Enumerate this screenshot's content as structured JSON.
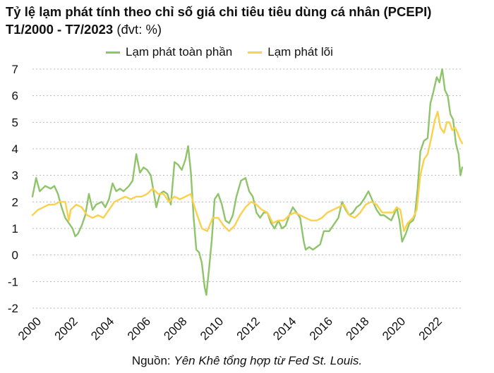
{
  "title_line1": "Tỷ lệ lạm phát tính theo chỉ số giá chi tiêu tiêu dùng cá nhân (PCEPI)",
  "title_line2": "T1/2000 - T7/2023",
  "title_unit": " (đvt: %)",
  "source_prefix": "Nguồn: ",
  "source_text": "Yên Khê tổng hợp từ Fed St. Louis.",
  "chart_data": {
    "type": "line",
    "title": "Tỷ lệ lạm phát tính theo chỉ số giá chi tiêu tiêu dùng cá nhân (PCEPI) T1/2000 - T7/2023 (đvt: %)",
    "xlabel": "",
    "ylabel": "",
    "xlim": [
      2000,
      2023.6
    ],
    "ylim": [
      -2,
      7
    ],
    "yticks": [
      -2,
      -1,
      0,
      1,
      2,
      3,
      4,
      5,
      6,
      7
    ],
    "xticks": [
      2000,
      2002,
      2004,
      2006,
      2008,
      2010,
      2012,
      2014,
      2016,
      2018,
      2020,
      2022
    ],
    "x_tick_labels": [
      "2000",
      "2002",
      "2004",
      "2006",
      "2008",
      "2010",
      "2012",
      "2014",
      "2016",
      "2018",
      "2020",
      "2022"
    ],
    "y_tick_labels": [
      "-2",
      "-1",
      "0",
      "1",
      "2",
      "3",
      "4",
      "5",
      "6",
      "7"
    ],
    "grid": "horizontal dotted",
    "legend_position": "top",
    "series": [
      {
        "name": "Lạm phát toàn phần",
        "color": "#8fc46a",
        "points": [
          [
            2000.0,
            2.2
          ],
          [
            2000.2,
            2.9
          ],
          [
            2000.4,
            2.4
          ],
          [
            2000.7,
            2.6
          ],
          [
            2001.0,
            2.5
          ],
          [
            2001.2,
            2.6
          ],
          [
            2001.4,
            2.3
          ],
          [
            2001.6,
            1.8
          ],
          [
            2001.8,
            1.4
          ],
          [
            2002.0,
            1.2
          ],
          [
            2002.2,
            1.0
          ],
          [
            2002.35,
            0.7
          ],
          [
            2002.5,
            0.8
          ],
          [
            2002.7,
            1.1
          ],
          [
            2002.9,
            1.5
          ],
          [
            2003.1,
            2.3
          ],
          [
            2003.3,
            1.7
          ],
          [
            2003.5,
            1.9
          ],
          [
            2003.8,
            2.0
          ],
          [
            2004.0,
            1.8
          ],
          [
            2004.2,
            2.1
          ],
          [
            2004.4,
            2.7
          ],
          [
            2004.6,
            2.4
          ],
          [
            2004.8,
            2.5
          ],
          [
            2005.0,
            2.4
          ],
          [
            2005.3,
            2.6
          ],
          [
            2005.5,
            2.8
          ],
          [
            2005.7,
            3.8
          ],
          [
            2005.9,
            3.1
          ],
          [
            2006.1,
            3.3
          ],
          [
            2006.3,
            3.2
          ],
          [
            2006.5,
            3.0
          ],
          [
            2006.8,
            1.8
          ],
          [
            2007.0,
            2.3
          ],
          [
            2007.2,
            2.4
          ],
          [
            2007.4,
            2.3
          ],
          [
            2007.6,
            1.9
          ],
          [
            2007.8,
            3.5
          ],
          [
            2008.0,
            3.4
          ],
          [
            2008.2,
            3.2
          ],
          [
            2008.4,
            3.6
          ],
          [
            2008.55,
            4.1
          ],
          [
            2008.7,
            3.1
          ],
          [
            2008.85,
            1.4
          ],
          [
            2009.0,
            0.2
          ],
          [
            2009.15,
            0.1
          ],
          [
            2009.3,
            -0.3
          ],
          [
            2009.45,
            -1.2
          ],
          [
            2009.55,
            -1.5
          ],
          [
            2009.7,
            -0.5
          ],
          [
            2009.85,
            0.6
          ],
          [
            2010.0,
            2.1
          ],
          [
            2010.2,
            2.3
          ],
          [
            2010.4,
            1.9
          ],
          [
            2010.6,
            1.3
          ],
          [
            2010.8,
            1.2
          ],
          [
            2011.0,
            1.5
          ],
          [
            2011.2,
            2.2
          ],
          [
            2011.45,
            2.8
          ],
          [
            2011.7,
            2.9
          ],
          [
            2011.9,
            2.4
          ],
          [
            2012.1,
            2.2
          ],
          [
            2012.3,
            1.6
          ],
          [
            2012.5,
            1.4
          ],
          [
            2012.7,
            1.6
          ],
          [
            2012.9,
            1.6
          ],
          [
            2013.1,
            1.2
          ],
          [
            2013.3,
            1.0
          ],
          [
            2013.5,
            1.3
          ],
          [
            2013.7,
            1.0
          ],
          [
            2013.9,
            1.1
          ],
          [
            2014.1,
            1.5
          ],
          [
            2014.3,
            1.8
          ],
          [
            2014.5,
            1.6
          ],
          [
            2014.7,
            1.4
          ],
          [
            2014.9,
            0.5
          ],
          [
            2015.0,
            0.2
          ],
          [
            2015.2,
            0.3
          ],
          [
            2015.4,
            0.2
          ],
          [
            2015.6,
            0.3
          ],
          [
            2015.8,
            0.4
          ],
          [
            2016.0,
            0.9
          ],
          [
            2016.3,
            0.9
          ],
          [
            2016.5,
            1.1
          ],
          [
            2016.8,
            1.4
          ],
          [
            2017.0,
            2.0
          ],
          [
            2017.2,
            1.7
          ],
          [
            2017.4,
            1.5
          ],
          [
            2017.6,
            1.6
          ],
          [
            2017.8,
            1.8
          ],
          [
            2018.0,
            1.9
          ],
          [
            2018.2,
            2.1
          ],
          [
            2018.45,
            2.4
          ],
          [
            2018.7,
            2.0
          ],
          [
            2018.9,
            1.7
          ],
          [
            2019.1,
            1.5
          ],
          [
            2019.3,
            1.5
          ],
          [
            2019.5,
            1.4
          ],
          [
            2019.7,
            1.3
          ],
          [
            2019.9,
            1.6
          ],
          [
            2020.0,
            1.8
          ],
          [
            2020.15,
            1.3
          ],
          [
            2020.3,
            0.5
          ],
          [
            2020.5,
            0.8
          ],
          [
            2020.7,
            1.2
          ],
          [
            2020.9,
            1.3
          ],
          [
            2021.0,
            1.5
          ],
          [
            2021.15,
            2.5
          ],
          [
            2021.3,
            3.9
          ],
          [
            2021.5,
            4.3
          ],
          [
            2021.7,
            4.4
          ],
          [
            2021.85,
            5.7
          ],
          [
            2022.0,
            6.1
          ],
          [
            2022.2,
            6.7
          ],
          [
            2022.35,
            6.5
          ],
          [
            2022.5,
            7.0
          ],
          [
            2022.65,
            6.2
          ],
          [
            2022.8,
            6.0
          ],
          [
            2022.95,
            5.3
          ],
          [
            2023.1,
            5.1
          ],
          [
            2023.25,
            4.2
          ],
          [
            2023.4,
            3.8
          ],
          [
            2023.5,
            3.0
          ],
          [
            2023.6,
            3.3
          ]
        ]
      },
      {
        "name": "Lạm phát lõi",
        "color": "#fbd04a",
        "points": [
          [
            2000.0,
            1.5
          ],
          [
            2000.3,
            1.7
          ],
          [
            2000.6,
            1.8
          ],
          [
            2000.9,
            1.9
          ],
          [
            2001.2,
            1.9
          ],
          [
            2001.5,
            2.0
          ],
          [
            2001.8,
            2.0
          ],
          [
            2002.0,
            1.3
          ],
          [
            2002.1,
            1.7
          ],
          [
            2002.4,
            1.9
          ],
          [
            2002.7,
            1.8
          ],
          [
            2003.0,
            1.5
          ],
          [
            2003.3,
            1.4
          ],
          [
            2003.6,
            1.5
          ],
          [
            2003.9,
            1.4
          ],
          [
            2004.2,
            1.7
          ],
          [
            2004.5,
            2.0
          ],
          [
            2004.8,
            2.1
          ],
          [
            2005.1,
            2.2
          ],
          [
            2005.4,
            2.1
          ],
          [
            2005.7,
            2.2
          ],
          [
            2006.0,
            2.2
          ],
          [
            2006.3,
            2.3
          ],
          [
            2006.6,
            2.5
          ],
          [
            2006.9,
            2.3
          ],
          [
            2007.2,
            2.3
          ],
          [
            2007.5,
            2.0
          ],
          [
            2007.8,
            2.2
          ],
          [
            2008.1,
            2.1
          ],
          [
            2008.4,
            2.2
          ],
          [
            2008.7,
            2.3
          ],
          [
            2008.9,
            1.8
          ],
          [
            2009.1,
            1.4
          ],
          [
            2009.3,
            1.0
          ],
          [
            2009.6,
            0.9
          ],
          [
            2009.9,
            1.4
          ],
          [
            2010.2,
            1.4
          ],
          [
            2010.5,
            1.1
          ],
          [
            2010.8,
            0.9
          ],
          [
            2011.1,
            1.1
          ],
          [
            2011.4,
            1.5
          ],
          [
            2011.7,
            1.8
          ],
          [
            2012.0,
            2.0
          ],
          [
            2012.3,
            1.9
          ],
          [
            2012.6,
            1.7
          ],
          [
            2012.9,
            1.6
          ],
          [
            2013.2,
            1.2
          ],
          [
            2013.5,
            1.3
          ],
          [
            2013.8,
            1.3
          ],
          [
            2014.1,
            1.5
          ],
          [
            2014.4,
            1.6
          ],
          [
            2014.7,
            1.5
          ],
          [
            2015.0,
            1.4
          ],
          [
            2015.3,
            1.3
          ],
          [
            2015.6,
            1.3
          ],
          [
            2015.9,
            1.4
          ],
          [
            2016.2,
            1.6
          ],
          [
            2016.5,
            1.7
          ],
          [
            2016.8,
            1.8
          ],
          [
            2017.1,
            1.9
          ],
          [
            2017.4,
            1.5
          ],
          [
            2017.7,
            1.4
          ],
          [
            2018.0,
            1.6
          ],
          [
            2018.3,
            1.9
          ],
          [
            2018.6,
            2.0
          ],
          [
            2018.9,
            1.9
          ],
          [
            2019.2,
            1.6
          ],
          [
            2019.5,
            1.6
          ],
          [
            2019.8,
            1.6
          ],
          [
            2020.0,
            1.8
          ],
          [
            2020.2,
            1.7
          ],
          [
            2020.4,
            0.9
          ],
          [
            2020.6,
            1.2
          ],
          [
            2020.9,
            1.4
          ],
          [
            2021.1,
            1.7
          ],
          [
            2021.3,
            3.0
          ],
          [
            2021.5,
            3.6
          ],
          [
            2021.7,
            3.8
          ],
          [
            2021.9,
            4.4
          ],
          [
            2022.1,
            5.1
          ],
          [
            2022.25,
            5.4
          ],
          [
            2022.4,
            4.8
          ],
          [
            2022.6,
            4.6
          ],
          [
            2022.75,
            5.0
          ],
          [
            2022.9,
            5.0
          ],
          [
            2023.05,
            4.7
          ],
          [
            2023.2,
            4.8
          ],
          [
            2023.35,
            4.6
          ],
          [
            2023.45,
            4.4
          ],
          [
            2023.6,
            4.2
          ]
        ]
      }
    ]
  }
}
